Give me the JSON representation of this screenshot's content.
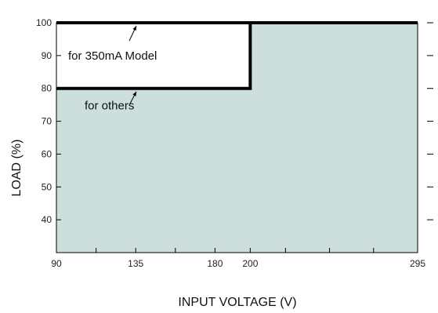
{
  "chart_data": {
    "type": "area",
    "xlabel": "INPUT VOLTAGE (V)",
    "ylabel": "LOAD (%)",
    "xlim": [
      90,
      295
    ],
    "ylim": [
      30,
      100
    ],
    "x_ticks": [
      90,
      135,
      180,
      200,
      295
    ],
    "y_ticks": [
      40,
      50,
      60,
      70,
      80,
      90,
      100
    ],
    "grid": false,
    "fill_color": "#cddfdc",
    "series": [
      {
        "x": [
          90,
          200,
          200,
          295
        ],
        "y": [
          100,
          100,
          100,
          100
        ]
      },
      {
        "x": [
          90,
          200,
          200,
          295
        ],
        "y": [
          80,
          80,
          100,
          100
        ]
      }
    ],
    "annotations": [
      {
        "text": "for 350mA Model",
        "x": 90,
        "y": 90
      },
      {
        "text": "for others",
        "x": 106,
        "y": 75
      }
    ]
  }
}
